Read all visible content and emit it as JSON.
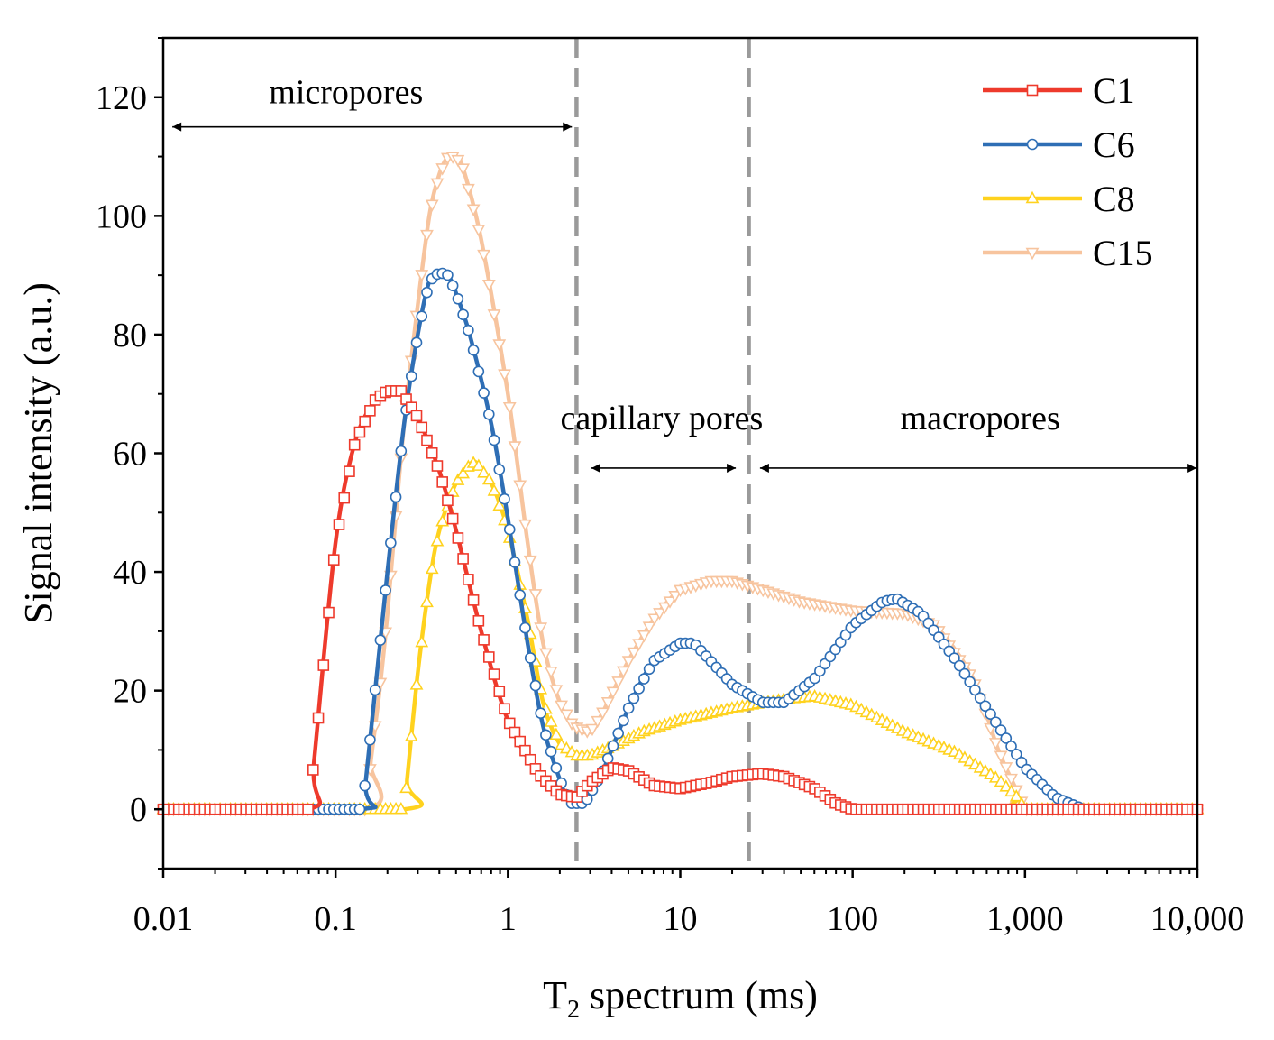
{
  "chart_data": {
    "type": "line",
    "xscale": "log",
    "xlabel_main": "T",
    "xlabel_sub": "2",
    "xlabel_rest": " spectrum (ms)",
    "ylabel": "Signal intensity (a.u.)",
    "xlim": [
      0.01,
      10000
    ],
    "ylim": [
      -10,
      130
    ],
    "xticks": [
      0.01,
      0.1,
      1,
      10,
      100,
      1000,
      10000
    ],
    "xtick_labels": [
      "0.01",
      "0.1",
      "1",
      "10",
      "100",
      "1,000",
      "10,000"
    ],
    "yticks": [
      0,
      20,
      40,
      60,
      80,
      100,
      120
    ],
    "ytick_labels": [
      "0",
      "20",
      "40",
      "60",
      "80",
      "100",
      "120"
    ],
    "boundaries": [
      2.5,
      25
    ],
    "regions": [
      {
        "label": "micropores",
        "from": 0.0113,
        "to": 2.35,
        "label_at": 0.115,
        "text_y": 119,
        "arrow_y": 115
      },
      {
        "label": "capillary pores",
        "from": 3.05,
        "to": 21,
        "label_at": 7.8,
        "text_y": 64,
        "arrow_y": 57.5
      },
      {
        "label": "macropores",
        "from": 29,
        "to": 9900,
        "label_at": 550,
        "text_y": 64,
        "arrow_y": 57.5
      }
    ],
    "legend_position": "top-right",
    "series": [
      {
        "name": "C1",
        "color": "#EE3A2C",
        "marker": "square",
        "x": [
          0.01,
          0.07,
          0.075,
          0.1,
          0.13,
          0.17,
          0.2,
          0.24,
          0.3,
          0.4,
          0.5,
          0.7,
          1.0,
          1.5,
          2.0,
          2.5,
          3.0,
          4.0,
          5.0,
          7.0,
          10,
          15,
          20,
          30,
          40,
          60,
          80,
          100,
          200,
          500,
          1000,
          10000
        ],
        "values": [
          0,
          0,
          8,
          45,
          62,
          69,
          70.5,
          70.5,
          66,
          57,
          47,
          30,
          15,
          6,
          2.5,
          2,
          4.5,
          7,
          6.5,
          4,
          3.5,
          4.5,
          5.5,
          6,
          5.5,
          3.5,
          1,
          0,
          0,
          0,
          0,
          0
        ]
      },
      {
        "name": "C6",
        "color": "#2E6EB5",
        "marker": "circle",
        "x": [
          0.01,
          0.14,
          0.15,
          0.2,
          0.25,
          0.3,
          0.35,
          0.4,
          0.45,
          0.5,
          0.6,
          0.8,
          1.0,
          1.3,
          1.6,
          2.0,
          2.3,
          2.8,
          3.5,
          5,
          7,
          10,
          12,
          15,
          20,
          30,
          40,
          60,
          100,
          150,
          180,
          250,
          400,
          700,
          1000,
          1500,
          2000,
          2200,
          10000
        ],
        "values": [
          0,
          0,
          5,
          40,
          65,
          80,
          89,
          90.5,
          90,
          87,
          80,
          65,
          49,
          28,
          14,
          5,
          1,
          1,
          6,
          17,
          25,
          28,
          28,
          25,
          21,
          18,
          18,
          22,
          31,
          35,
          35.5,
          33,
          25,
          14,
          7,
          2,
          0.5,
          0,
          0
        ]
      },
      {
        "name": "C8",
        "color": "#FFD21E",
        "marker": "triangle-up",
        "x": [
          0.01,
          0.25,
          0.26,
          0.3,
          0.35,
          0.4,
          0.5,
          0.6,
          0.65,
          0.8,
          1.0,
          1.3,
          1.6,
          2.0,
          2.5,
          3.0,
          4.0,
          6,
          10,
          20,
          40,
          60,
          100,
          200,
          400,
          700,
          900,
          1000,
          10000
        ],
        "values": [
          0,
          0,
          5,
          23,
          38,
          47,
          55,
          58,
          58.5,
          55,
          47,
          32,
          18,
          11,
          9,
          9,
          10.5,
          13,
          15,
          17,
          18.5,
          19,
          17.5,
          13,
          9.5,
          5,
          2,
          0,
          0
        ]
      },
      {
        "name": "C15",
        "color": "#F7C49E",
        "marker": "triangle-down",
        "x": [
          0.01,
          0.15,
          0.16,
          0.18,
          0.2,
          0.22,
          0.25,
          0.3,
          0.35,
          0.4,
          0.45,
          0.5,
          0.55,
          0.7,
          1.0,
          1.3,
          1.6,
          2.0,
          2.4,
          3.0,
          3.5,
          5,
          7,
          10,
          15,
          20,
          30,
          50,
          100,
          200,
          300,
          500,
          700,
          900,
          1000,
          10000
        ],
        "values": [
          0,
          0,
          8,
          20,
          33,
          47,
          65,
          85,
          100,
          107,
          110,
          110,
          108,
          96,
          70,
          45,
          28,
          18,
          14,
          13,
          16,
          25,
          32,
          37,
          38.5,
          38.5,
          37,
          35,
          33.5,
          33,
          31,
          22,
          10,
          3,
          0,
          0
        ]
      }
    ]
  }
}
